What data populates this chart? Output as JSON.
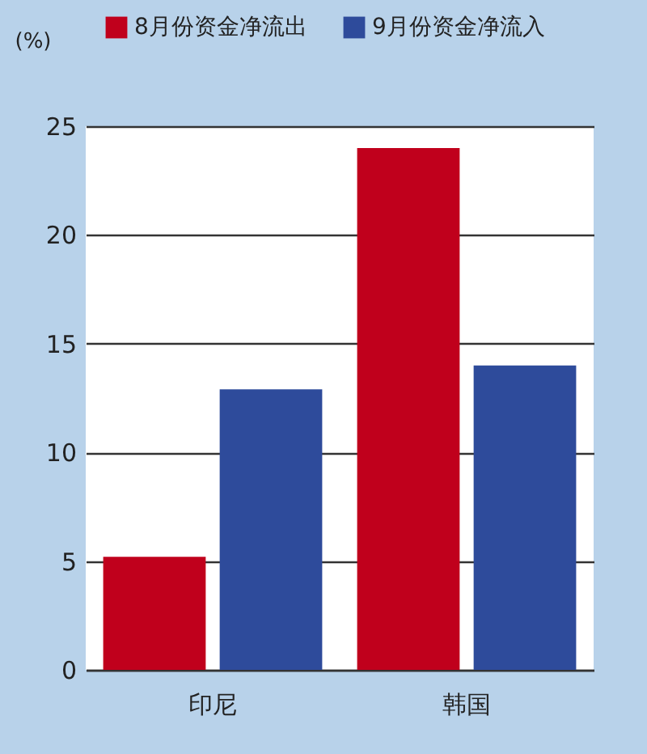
{
  "chart_data": {
    "type": "bar",
    "ylabel": "(%)",
    "categories": [
      "印尼",
      "韩国"
    ],
    "series": [
      {
        "name": "8月份资金净流出",
        "color": "#c0001c",
        "values": [
          5.2,
          24.0
        ]
      },
      {
        "name": "9月份资金净流入",
        "color": "#2e4b9b",
        "values": [
          12.9,
          14.0
        ]
      }
    ],
    "ylim": [
      0,
      25
    ],
    "yticks": [
      0,
      5,
      10,
      15,
      20,
      25
    ],
    "grid": "y",
    "legend": "top"
  }
}
